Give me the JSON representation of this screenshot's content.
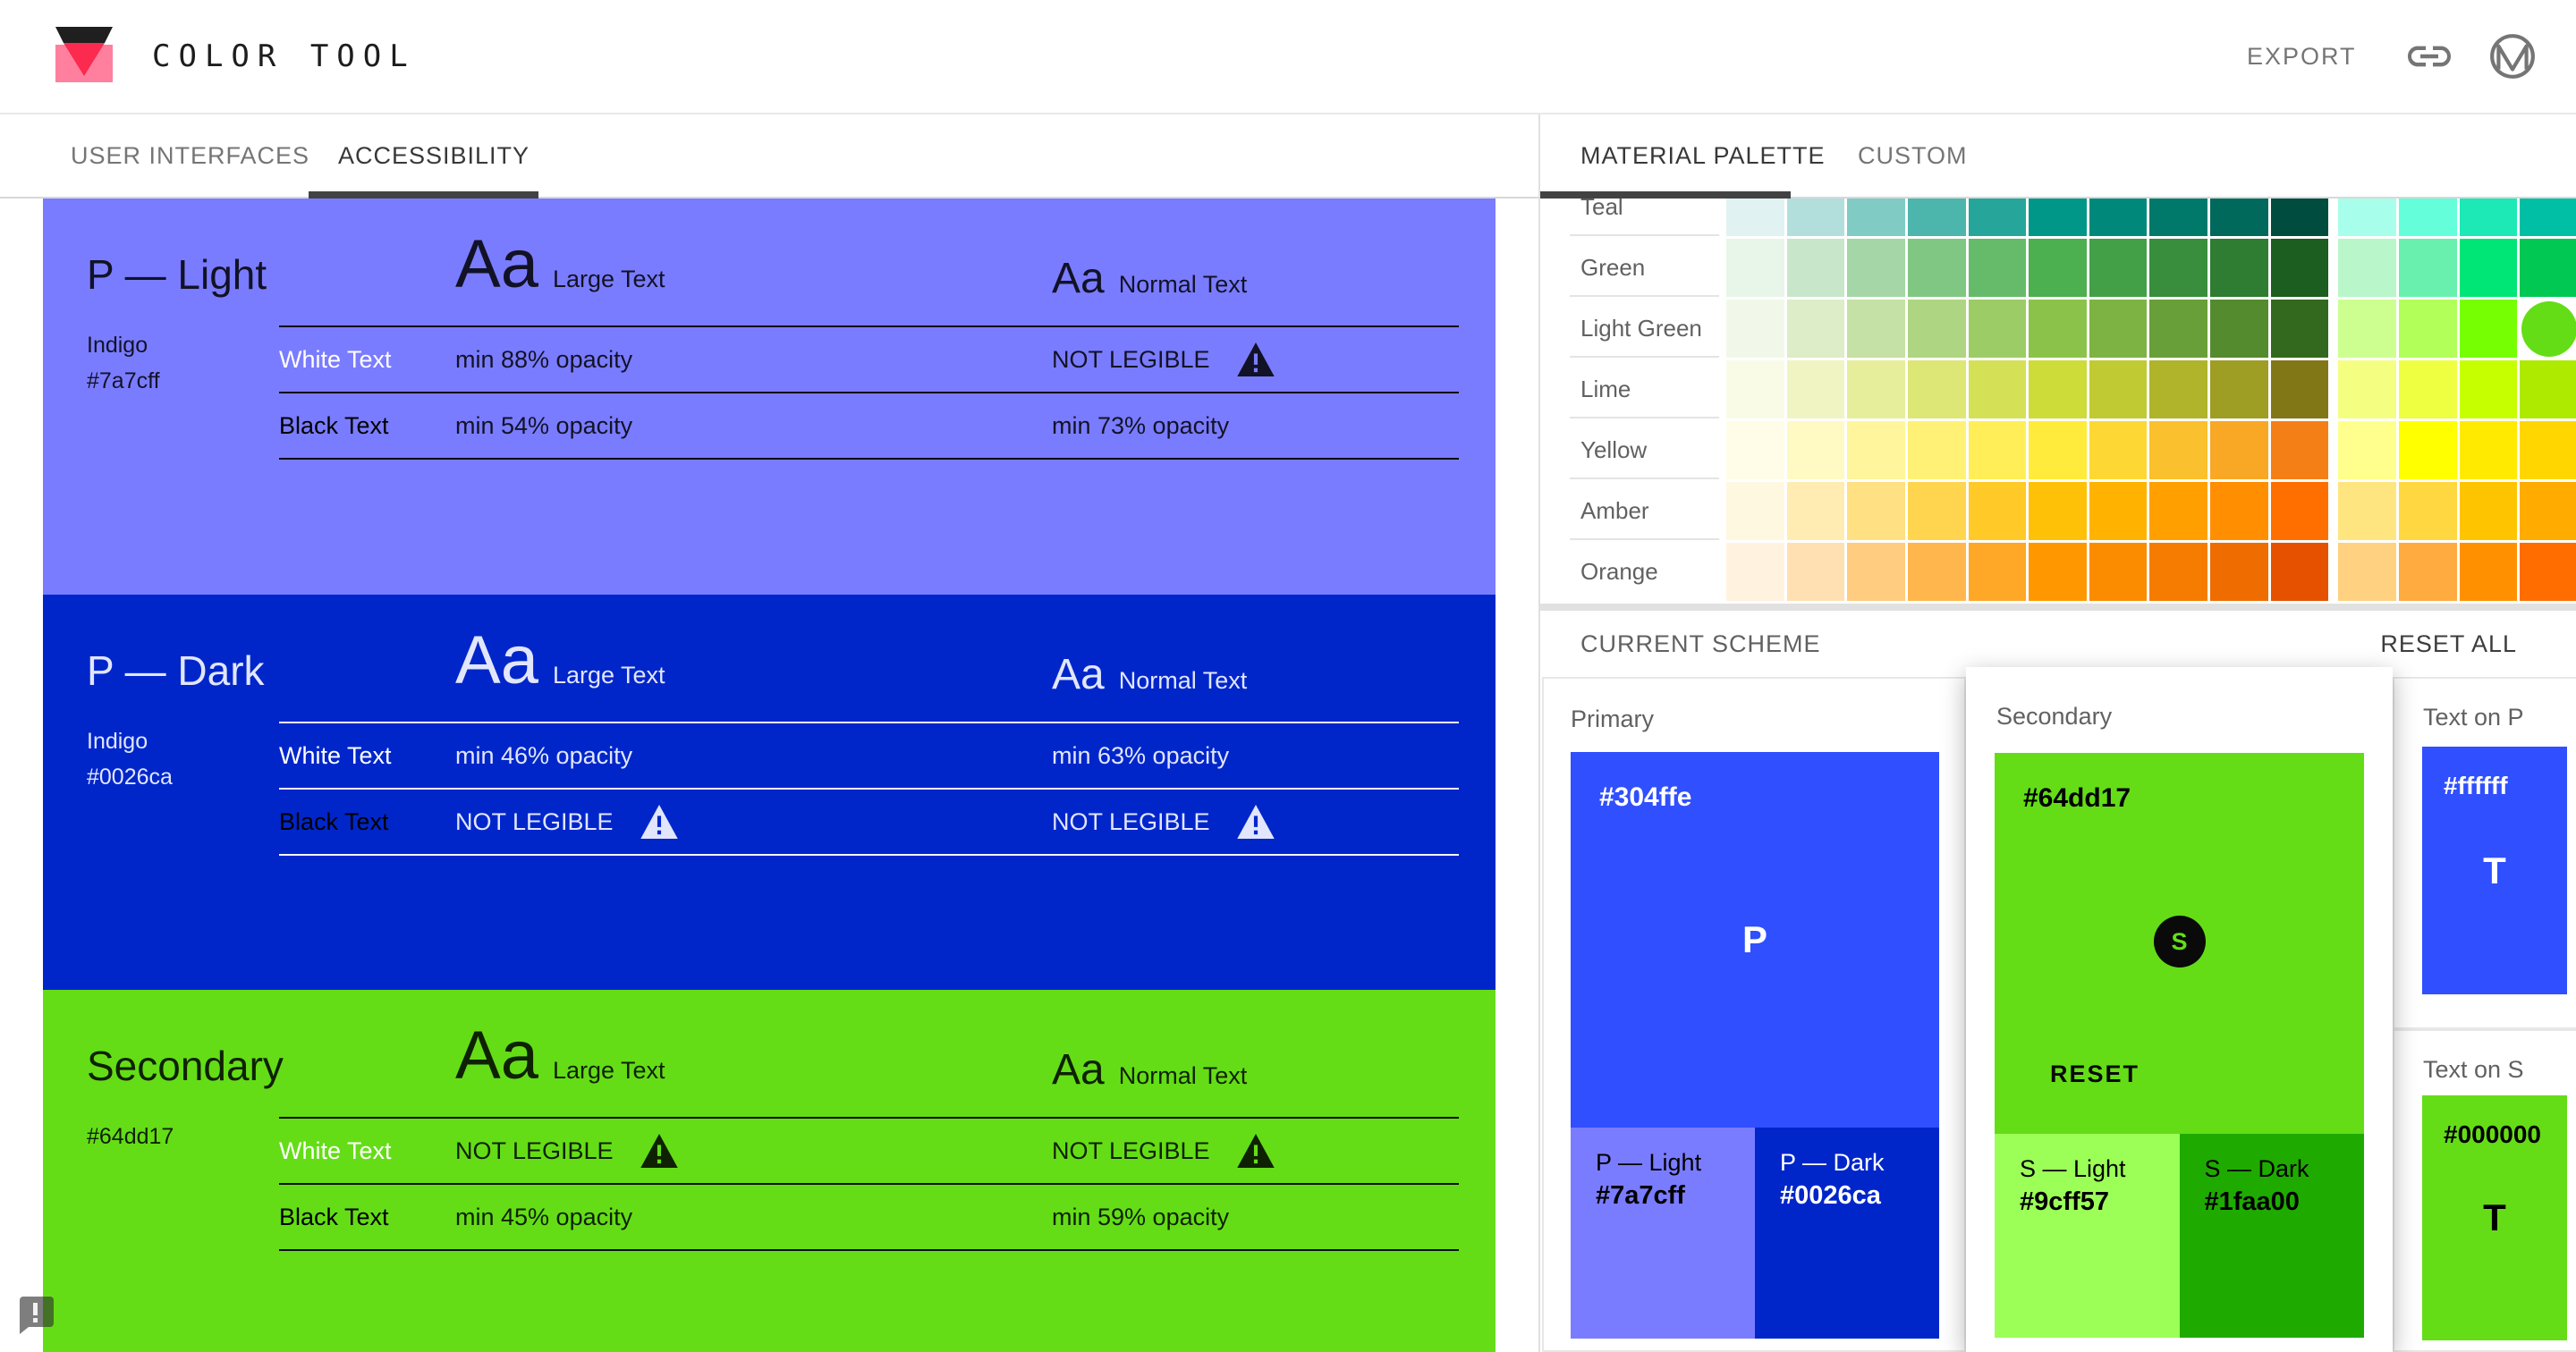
{
  "header": {
    "title": "COLOR TOOL",
    "export_label": "EXPORT"
  },
  "icons": {
    "logo-icon": "inverted-triangle",
    "link-icon": "chain-link",
    "material-logo-icon": "m-in-circle",
    "warning-icon": "exclamation-triangle",
    "feedback-icon": "exclamation-speech-bubble"
  },
  "left_tabs": [
    {
      "label": "USER INTERFACES",
      "active": false
    },
    {
      "label": "ACCESSIBILITY",
      "active": true
    }
  ],
  "sections": [
    {
      "title": "P — Light",
      "color_name": "Indigo",
      "hex": "#7a7cff",
      "bg": "#7a7cff",
      "contrast": "#000000",
      "aa": "Aa",
      "large_label": "Large Text",
      "normal_label": "Normal Text",
      "rows": [
        {
          "label": "White Text",
          "label_color": "#ffffff",
          "large": {
            "text": "min 88% opacity",
            "warn": false
          },
          "normal": {
            "text": "NOT LEGIBLE",
            "warn": true
          }
        },
        {
          "label": "Black Text",
          "label_color": "#000000",
          "large": {
            "text": "min 54% opacity",
            "warn": false
          },
          "normal": {
            "text": "min 73% opacity",
            "warn": false
          }
        }
      ]
    },
    {
      "title": "P — Dark",
      "color_name": "Indigo",
      "hex": "#0026ca",
      "bg": "#0026ca",
      "contrast": "#ffffff",
      "aa": "Aa",
      "large_label": "Large Text",
      "normal_label": "Normal Text",
      "rows": [
        {
          "label": "White Text",
          "label_color": "#ffffff",
          "large": {
            "text": "min 46% opacity",
            "warn": false
          },
          "normal": {
            "text": "min 63% opacity",
            "warn": false
          }
        },
        {
          "label": "Black Text",
          "label_color": "#000000",
          "large": {
            "text": "NOT LEGIBLE",
            "warn": true
          },
          "normal": {
            "text": "NOT LEGIBLE",
            "warn": true
          }
        }
      ]
    },
    {
      "title": "Secondary",
      "color_name": "",
      "hex": "#64dd17",
      "bg": "#64dd17",
      "contrast": "#000000",
      "aa": "Aa",
      "large_label": "Large Text",
      "normal_label": "Normal Text",
      "rows": [
        {
          "label": "White Text",
          "label_color": "#ffffff",
          "large": {
            "text": "NOT LEGIBLE",
            "warn": true
          },
          "normal": {
            "text": "NOT LEGIBLE",
            "warn": true
          }
        },
        {
          "label": "Black Text",
          "label_color": "#000000",
          "large": {
            "text": "min 45% opacity",
            "warn": false
          },
          "normal": {
            "text": "min 59% opacity",
            "warn": false
          }
        }
      ]
    }
  ],
  "palette": {
    "tabs": [
      {
        "label": "MATERIAL PALETTE",
        "active": true
      },
      {
        "label": "CUSTOM",
        "active": false
      }
    ],
    "rows": [
      {
        "name": "Teal",
        "clipped": true,
        "colors": [
          "#e0f2f1",
          "#b2dfdb",
          "#80cbc4",
          "#4db6ac",
          "#26a69a",
          "#009688",
          "#00897b",
          "#00796b",
          "#00695c",
          "#004d40",
          "#a7ffeb",
          "#64ffda",
          "#1de9b6",
          "#00bfa5"
        ]
      },
      {
        "name": "Green",
        "colors": [
          "#e8f5e9",
          "#c8e6c9",
          "#a5d6a7",
          "#81c784",
          "#66bb6a",
          "#4caf50",
          "#43a047",
          "#388e3c",
          "#2e7d32",
          "#1b5e20",
          "#b9f6ca",
          "#69f0ae",
          "#00e676",
          "#00c853"
        ]
      },
      {
        "name": "Light Green",
        "selected_index": 13,
        "colors": [
          "#f1f8e9",
          "#dcedc8",
          "#c5e1a5",
          "#aed581",
          "#9ccc65",
          "#8bc34a",
          "#7cb342",
          "#689f38",
          "#558b2f",
          "#33691e",
          "#ccff90",
          "#b2ff59",
          "#76ff03",
          "#64dd17"
        ]
      },
      {
        "name": "Lime",
        "colors": [
          "#f9fbe7",
          "#f0f4c3",
          "#e6ee9c",
          "#dce775",
          "#d4e157",
          "#cddc39",
          "#c0ca33",
          "#afb42b",
          "#9e9d24",
          "#827717",
          "#f4ff81",
          "#eeff41",
          "#c6ff00",
          "#aeea00"
        ]
      },
      {
        "name": "Yellow",
        "colors": [
          "#fffde7",
          "#fff9c4",
          "#fff59d",
          "#fff176",
          "#ffee58",
          "#ffeb3b",
          "#fdd835",
          "#fbc02d",
          "#f9a825",
          "#f57f17",
          "#ffff8d",
          "#ffff00",
          "#ffea00",
          "#ffd600"
        ]
      },
      {
        "name": "Amber",
        "colors": [
          "#fff8e1",
          "#ffecb3",
          "#ffe082",
          "#ffd54f",
          "#ffca28",
          "#ffc107",
          "#ffb300",
          "#ffa000",
          "#ff8f00",
          "#ff6f00",
          "#ffe57f",
          "#ffd740",
          "#ffc400",
          "#ffab00"
        ]
      },
      {
        "name": "Orange",
        "colors": [
          "#fff3e0",
          "#ffe0b2",
          "#ffcc80",
          "#ffb74d",
          "#ffa726",
          "#ff9800",
          "#fb8c00",
          "#f57c00",
          "#ef6c00",
          "#e65100",
          "#ffd180",
          "#ffab40",
          "#ff9100",
          "#ff6d00"
        ]
      }
    ]
  },
  "scheme": {
    "title": "CURRENT SCHEME",
    "reset_all_label": "RESET ALL",
    "primary": {
      "label": "Primary",
      "hex": "#304ffe",
      "fg": "#ffffff",
      "letter": "P",
      "light": {
        "label": "P — Light",
        "hex": "#7a7cff",
        "fg": "#000000"
      },
      "dark": {
        "label": "P — Dark",
        "hex": "#0026ca",
        "fg": "#ffffff"
      }
    },
    "secondary": {
      "label": "Secondary",
      "hex": "#64dd17",
      "fg": "#000000",
      "letter": "S",
      "reset_label": "RESET",
      "light": {
        "label": "S — Light",
        "hex": "#9cff57",
        "fg": "#000000"
      },
      "dark": {
        "label": "S — Dark",
        "hex": "#1faa00",
        "fg": "#000000"
      }
    },
    "text_on_p": {
      "label": "Text on P",
      "hex": "#ffffff",
      "fg": "#ffffff",
      "bg": "#304ffe",
      "letter": "T"
    },
    "text_on_s": {
      "label": "Text on S",
      "hex": "#000000",
      "fg": "#000000",
      "bg": "#64dd17",
      "letter": "T"
    }
  }
}
